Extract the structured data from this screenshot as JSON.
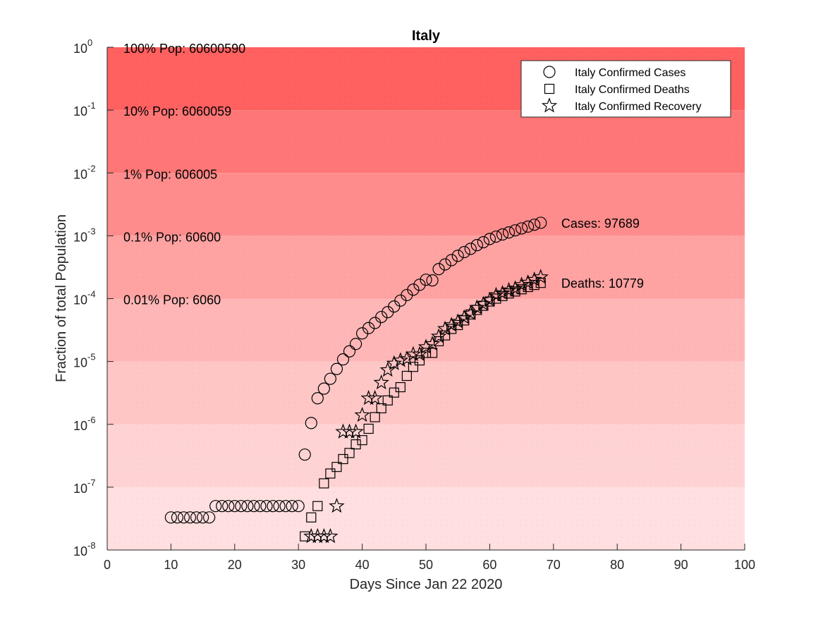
{
  "chart_data": {
    "type": "scatter",
    "title": "Italy",
    "xlabel": "Days Since Jan 22 2020",
    "ylabel": "Fraction of total Population",
    "xlim": [
      0,
      100
    ],
    "ylim": [
      1e-08,
      1
    ],
    "yscale": "log",
    "x_ticks": [
      "0",
      "10",
      "20",
      "30",
      "40",
      "50",
      "60",
      "70",
      "80",
      "90",
      "100"
    ],
    "y_ticks": [
      {
        "base": "10",
        "exp": "0",
        "value": 1
      },
      {
        "base": "10",
        "exp": "-1",
        "value": 0.1
      },
      {
        "base": "10",
        "exp": "-2",
        "value": 0.01
      },
      {
        "base": "10",
        "exp": "-3",
        "value": 0.001
      },
      {
        "base": "10",
        "exp": "-4",
        "value": 0.0001
      },
      {
        "base": "10",
        "exp": "-5",
        "value": 1e-05
      },
      {
        "base": "10",
        "exp": "-6",
        "value": 1e-06
      },
      {
        "base": "10",
        "exp": "-7",
        "value": 1e-07
      },
      {
        "base": "10",
        "exp": "-8",
        "value": 1e-08
      }
    ],
    "population_bands": [
      {
        "label": "100% Pop: 60600590",
        "upper": 1,
        "lower": 0.1,
        "color": "#ff6060"
      },
      {
        "label": "10% Pop: 6060059",
        "upper": 0.1,
        "lower": 0.01,
        "color": "#ff7676"
      },
      {
        "label": "1% Pop: 606005",
        "upper": 0.01,
        "lower": 0.001,
        "color": "#ff8c8c"
      },
      {
        "label": "0.1% Pop: 60600",
        "upper": 0.001,
        "lower": 0.0001,
        "color": "#ffa2a2"
      },
      {
        "label": "0.01% Pop: 6060",
        "upper": 0.0001,
        "lower": 1e-05,
        "color": "#ffb6b6"
      },
      {
        "label": "",
        "upper": 1e-05,
        "lower": 1e-06,
        "color": "#ffc6c6"
      },
      {
        "label": "",
        "upper": 1e-06,
        "lower": 1e-07,
        "color": "#ffd3d3"
      },
      {
        "label": "",
        "upper": 1e-07,
        "lower": 1e-08,
        "color": "#ffdfdf"
      }
    ],
    "end_labels": [
      {
        "text": "Cases: 97689",
        "x": 71,
        "y": 0.00161
      },
      {
        "text": "Deaths: 10779",
        "x": 71,
        "y": 0.000178
      }
    ],
    "legend_position": "top-right",
    "series": [
      {
        "name": "Italy Confirmed Cases",
        "marker": "circle",
        "x": [
          10,
          11,
          12,
          13,
          14,
          15,
          16,
          17,
          18,
          19,
          20,
          21,
          22,
          23,
          24,
          25,
          26,
          27,
          28,
          29,
          30,
          31,
          32,
          33,
          34,
          35,
          36,
          37,
          38,
          39,
          40,
          41,
          42,
          43,
          44,
          45,
          46,
          47,
          48,
          49,
          50,
          51,
          52,
          53,
          54,
          55,
          56,
          57,
          58,
          59,
          60,
          61,
          62,
          63,
          64,
          65,
          66,
          67,
          68
        ],
        "y": [
          3.3e-08,
          3.3e-08,
          3.3e-08,
          3.3e-08,
          3.3e-08,
          3.3e-08,
          3.3e-08,
          5e-08,
          5e-08,
          5e-08,
          5e-08,
          5e-08,
          5e-08,
          5e-08,
          5e-08,
          5e-08,
          5e-08,
          5e-08,
          5e-08,
          5e-08,
          5e-08,
          3.3e-07,
          1.05e-06,
          2.6e-06,
          3.7e-06,
          5.3e-06,
          7.6e-06,
          1.08e-05,
          1.45e-05,
          1.9e-05,
          2.8e-05,
          3.4e-05,
          4.1e-05,
          5.1e-05,
          6.1e-05,
          7.5e-05,
          9.3e-05,
          0.000114,
          0.000139,
          0.000166,
          0.0002,
          0.000195,
          0.000295,
          0.00035,
          0.00041,
          0.00048,
          0.00055,
          0.00062,
          0.00071,
          0.00079,
          0.00089,
          0.00097,
          0.00105,
          0.00113,
          0.00122,
          0.00131,
          0.0014,
          0.0015,
          0.00161
        ]
      },
      {
        "name": "Italy Confirmed Deaths",
        "marker": "square",
        "x": [
          31,
          32,
          33,
          34,
          35,
          36,
          37,
          38,
          39,
          40,
          41,
          42,
          43,
          44,
          45,
          46,
          47,
          48,
          49,
          50,
          51,
          52,
          53,
          54,
          55,
          56,
          57,
          58,
          59,
          60,
          61,
          62,
          63,
          64,
          65,
          66,
          67,
          68
        ],
        "y": [
          1.65e-08,
          3.3e-08,
          5e-08,
          1.15e-07,
          1.65e-07,
          2.1e-07,
          2.8e-07,
          3.5e-07,
          4.8e-07,
          5.6e-07,
          8.5e-07,
          1.3e-06,
          1.8e-06,
          2.4e-06,
          3.2e-06,
          3.9e-06,
          5.9e-06,
          8.2e-06,
          1.04e-05,
          1.37e-05,
          1.37e-05,
          2.1e-05,
          2.6e-05,
          3.3e-05,
          3.8e-05,
          4.5e-05,
          5.6e-05,
          6.6e-05,
          7.7e-05,
          9e-05,
          0.0001,
          0.00011,
          0.000121,
          0.00013,
          0.000141,
          0.000153,
          0.000165,
          0.000178
        ]
      },
      {
        "name": "Italy Confirmed Recovery",
        "marker": "star",
        "x": [
          32,
          33,
          34,
          35,
          36,
          37,
          38,
          39,
          40,
          41,
          42,
          43,
          44,
          45,
          46,
          47,
          48,
          49,
          50,
          51,
          52,
          53,
          54,
          55,
          56,
          57,
          58,
          59,
          60,
          61,
          62,
          63,
          64,
          65,
          66,
          67,
          68
        ],
        "y": [
          1.65e-08,
          1.65e-08,
          1.65e-08,
          1.65e-08,
          5e-08,
          7.6e-07,
          7.6e-07,
          7.6e-07,
          1.4e-06,
          2.6e-06,
          2.6e-06,
          4.6e-06,
          7.3e-06,
          9.3e-06,
          1.04e-05,
          1.1e-05,
          1.3e-05,
          1.3e-05,
          1.7e-05,
          1.9e-05,
          2.5e-05,
          3.3e-05,
          3.8e-05,
          4.3e-05,
          5e-05,
          5.8e-05,
          7.2e-05,
          8.2e-05,
          9.5e-05,
          0.000114,
          0.000122,
          0.000136,
          0.000145,
          0.000165,
          0.00018,
          0.0002,
          0.00022
        ]
      }
    ]
  }
}
